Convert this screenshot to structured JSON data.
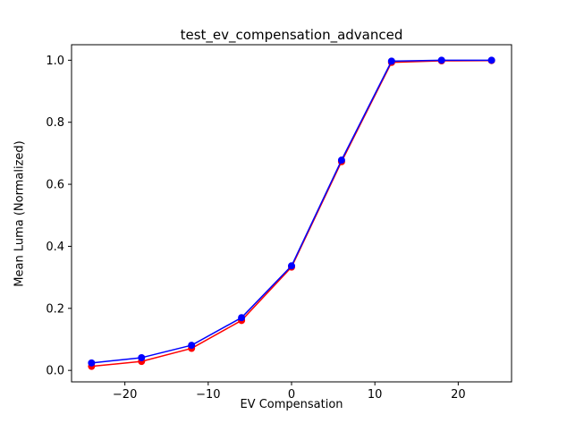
{
  "chart_data": {
    "type": "line",
    "title": "test_ev_compensation_advanced",
    "xlabel": "EV Compensation",
    "ylabel": "Mean Luma (Normalized)",
    "x": [
      -24,
      -18,
      -12,
      -6,
      0,
      6,
      12,
      18,
      24
    ],
    "series": [
      {
        "name": "series-red",
        "color": "#ff0000",
        "marker": "circle",
        "marker_size": 4,
        "values": [
          0.013,
          0.029,
          0.071,
          0.161,
          0.333,
          0.673,
          0.993,
          0.998,
          0.999
        ]
      },
      {
        "name": "series-blue",
        "color": "#0000ff",
        "marker": "circle",
        "marker_size": 4,
        "values": [
          0.024,
          0.041,
          0.081,
          0.17,
          0.337,
          0.678,
          0.997,
          1.0,
          1.0
        ]
      }
    ],
    "xlim": [
      -26.4,
      26.4
    ],
    "ylim": [
      -0.037,
      1.05
    ],
    "xticks": [
      -20,
      -10,
      0,
      10,
      20
    ],
    "xtick_labels": [
      "−20",
      "−10",
      "0",
      "10",
      "20"
    ],
    "yticks": [
      0.0,
      0.2,
      0.4,
      0.6,
      0.8,
      1.0
    ],
    "ytick_labels": [
      "0.0",
      "0.2",
      "0.4",
      "0.6",
      "0.8",
      "1.0"
    ],
    "grid": false,
    "legend": null
  }
}
